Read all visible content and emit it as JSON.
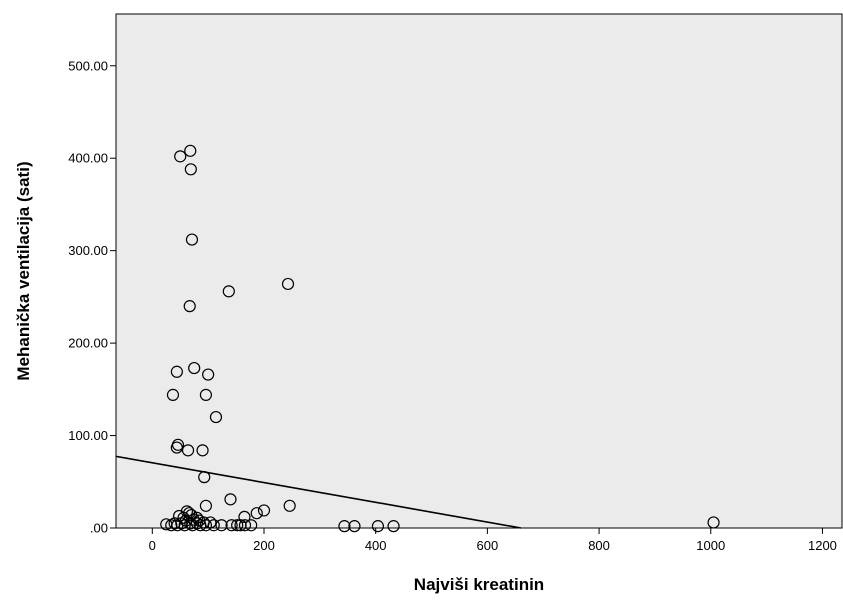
{
  "chart_data": {
    "type": "scatter",
    "title": "",
    "xlabel": "Najviši kreatinin",
    "ylabel": "Mehanička ventilacija (sati)",
    "xlim": [
      -65,
      1235
    ],
    "ylim": [
      0,
      556
    ],
    "x_ticks": [
      0,
      200,
      400,
      600,
      800,
      1000,
      1200
    ],
    "x_tick_labels": [
      "0",
      "200",
      "400",
      "600",
      "800",
      "1000",
      "1200"
    ],
    "y_ticks": [
      0,
      100,
      200,
      300,
      400,
      500
    ],
    "y_tick_labels": [
      ".00",
      "100.00",
      "200.00",
      "300.00",
      "400.00",
      "500.00"
    ],
    "grid": false,
    "colors": {
      "plot_background": "#ebebeb",
      "marker": "#000000",
      "fit_line": "#000000"
    },
    "fit_line": {
      "x": [
        -65,
        660
      ],
      "y": [
        77.5,
        0
      ]
    },
    "points": [
      {
        "x": 50,
        "y": 402
      },
      {
        "x": 68,
        "y": 408
      },
      {
        "x": 69,
        "y": 388
      },
      {
        "x": 71,
        "y": 312
      },
      {
        "x": 67,
        "y": 240
      },
      {
        "x": 137,
        "y": 256
      },
      {
        "x": 243,
        "y": 264
      },
      {
        "x": 44,
        "y": 169
      },
      {
        "x": 75,
        "y": 173
      },
      {
        "x": 100,
        "y": 166
      },
      {
        "x": 37,
        "y": 144
      },
      {
        "x": 96,
        "y": 144
      },
      {
        "x": 114,
        "y": 120
      },
      {
        "x": 46,
        "y": 90
      },
      {
        "x": 44,
        "y": 87
      },
      {
        "x": 64,
        "y": 84
      },
      {
        "x": 90,
        "y": 84
      },
      {
        "x": 93,
        "y": 55
      },
      {
        "x": 140,
        "y": 31
      },
      {
        "x": 96,
        "y": 24
      },
      {
        "x": 246,
        "y": 24
      },
      {
        "x": 200,
        "y": 19
      },
      {
        "x": 187,
        "y": 16
      },
      {
        "x": 62,
        "y": 18
      },
      {
        "x": 66,
        "y": 16
      },
      {
        "x": 70,
        "y": 14
      },
      {
        "x": 48,
        "y": 13
      },
      {
        "x": 56,
        "y": 11
      },
      {
        "x": 80,
        "y": 11
      },
      {
        "x": 165,
        "y": 12
      },
      {
        "x": 74,
        "y": 9
      },
      {
        "x": 60,
        "y": 8
      },
      {
        "x": 84,
        "y": 8
      },
      {
        "x": 92,
        "y": 6
      },
      {
        "x": 104,
        "y": 6
      },
      {
        "x": 40,
        "y": 5
      },
      {
        "x": 52,
        "y": 5
      },
      {
        "x": 68,
        "y": 5
      },
      {
        "x": 80,
        "y": 5
      },
      {
        "x": 25,
        "y": 4
      },
      {
        "x": 34,
        "y": 3
      },
      {
        "x": 45,
        "y": 3
      },
      {
        "x": 58,
        "y": 3
      },
      {
        "x": 72,
        "y": 3
      },
      {
        "x": 86,
        "y": 3
      },
      {
        "x": 96,
        "y": 3
      },
      {
        "x": 110,
        "y": 3
      },
      {
        "x": 124,
        "y": 3
      },
      {
        "x": 142,
        "y": 3
      },
      {
        "x": 152,
        "y": 3
      },
      {
        "x": 158,
        "y": 3
      },
      {
        "x": 166,
        "y": 3
      },
      {
        "x": 177,
        "y": 3
      },
      {
        "x": 344,
        "y": 2
      },
      {
        "x": 362,
        "y": 2
      },
      {
        "x": 404,
        "y": 2
      },
      {
        "x": 432,
        "y": 2
      },
      {
        "x": 1005,
        "y": 6
      }
    ]
  }
}
